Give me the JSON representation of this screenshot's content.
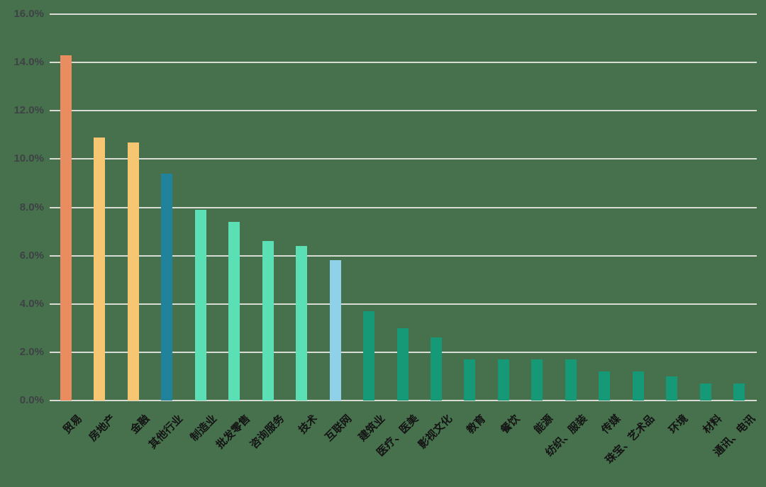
{
  "chart_data": {
    "type": "bar",
    "title": "",
    "xlabel": "",
    "ylabel": "",
    "categories": [
      "贸易",
      "房地产",
      "金融",
      "其他行业",
      "制造业",
      "批发零售",
      "咨询服务",
      "技术",
      "互联网",
      "建筑业",
      "医疗、医美",
      "影视文化",
      "教育",
      "餐饮",
      "能源",
      "纺织、服装",
      "传媒",
      "珠宝、艺术品",
      "环境",
      "材料",
      "通讯、电讯"
    ],
    "values": [
      14.3,
      10.9,
      10.7,
      9.4,
      7.9,
      7.4,
      6.6,
      6.4,
      5.8,
      3.7,
      3.0,
      2.6,
      1.7,
      1.7,
      1.7,
      1.7,
      1.2,
      1.2,
      1.0,
      0.7,
      0.7
    ],
    "value_unit": "%",
    "bar_colors": [
      "#E98C5F",
      "#F6C673",
      "#F6C673",
      "#21839B",
      "#5BE0B5",
      "#5BE0B5",
      "#5BE0B5",
      "#5BE0B5",
      "#8ED1E8",
      "#169977",
      "#169977",
      "#169977",
      "#169977",
      "#169977",
      "#169977",
      "#169977",
      "#169977",
      "#169977",
      "#169977",
      "#169977",
      "#169977"
    ],
    "ylim": [
      0,
      16
    ],
    "ytick_step": 2,
    "ytick_labels_top_to_bottom": [
      "16.0%",
      "14.0%",
      "12.0%",
      "10.0%",
      "8.0%",
      "6.0%",
      "4.0%",
      "2.0%",
      "0.0%"
    ],
    "grid": true,
    "legend": "none",
    "colors": {
      "background": "#47704D",
      "gridline": "#D9DBD5",
      "y_tick_text": "#3E4245",
      "x_tick_text": "#141414"
    }
  }
}
